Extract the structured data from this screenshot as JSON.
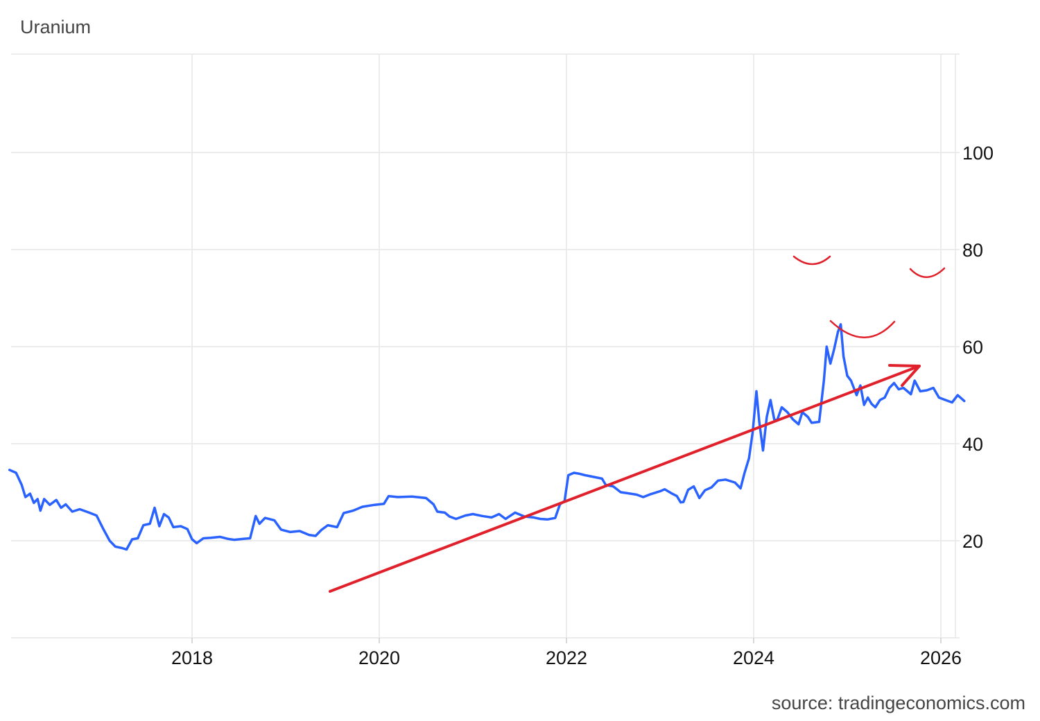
{
  "title": "Uranium",
  "source": "source: tradingeconomics.com",
  "colors": {
    "series": "#2962ff",
    "annotation": "#e0202a",
    "grid": "#e6e6e6"
  },
  "chart_data": {
    "type": "line",
    "title": "Uranium",
    "xlabel": "",
    "ylabel": "",
    "xlim": [
      2016.05,
      2026.45
    ],
    "ylim": [
      0,
      120
    ],
    "x_ticks": [
      "2018",
      "2020",
      "2022",
      "2024",
      "2026"
    ],
    "y_ticks": [
      "20",
      "40",
      "60",
      "80",
      "100"
    ],
    "y_axis_side": "right",
    "grid": true,
    "series": [
      {
        "color": "#2962ff",
        "points": [
          [
            2016.05,
            34.6
          ],
          [
            2016.12,
            34.0
          ],
          [
            2016.18,
            31.5
          ],
          [
            2016.22,
            29.0
          ],
          [
            2016.27,
            29.7
          ],
          [
            2016.31,
            27.8
          ],
          [
            2016.35,
            28.6
          ],
          [
            2016.38,
            26.2
          ],
          [
            2016.42,
            28.6
          ],
          [
            2016.48,
            27.4
          ],
          [
            2016.55,
            28.4
          ],
          [
            2016.6,
            26.8
          ],
          [
            2016.65,
            27.5
          ],
          [
            2016.72,
            26.0
          ],
          [
            2016.8,
            26.5
          ],
          [
            2016.9,
            25.8
          ],
          [
            2016.98,
            25.2
          ],
          [
            2017.05,
            22.5
          ],
          [
            2017.12,
            20.0
          ],
          [
            2017.18,
            18.8
          ],
          [
            2017.25,
            18.5
          ],
          [
            2017.3,
            18.2
          ],
          [
            2017.36,
            20.3
          ],
          [
            2017.42,
            20.5
          ],
          [
            2017.48,
            23.2
          ],
          [
            2017.55,
            23.5
          ],
          [
            2017.6,
            26.8
          ],
          [
            2017.65,
            23.0
          ],
          [
            2017.7,
            25.5
          ],
          [
            2017.75,
            24.8
          ],
          [
            2017.8,
            22.8
          ],
          [
            2017.88,
            23.0
          ],
          [
            2017.95,
            22.4
          ],
          [
            2018.0,
            20.3
          ],
          [
            2018.05,
            19.5
          ],
          [
            2018.12,
            20.5
          ],
          [
            2018.2,
            20.6
          ],
          [
            2018.3,
            20.8
          ],
          [
            2018.38,
            20.4
          ],
          [
            2018.45,
            20.2
          ],
          [
            2018.55,
            20.4
          ],
          [
            2018.62,
            20.5
          ],
          [
            2018.68,
            25.1
          ],
          [
            2018.72,
            23.5
          ],
          [
            2018.78,
            24.7
          ],
          [
            2018.88,
            24.2
          ],
          [
            2018.95,
            22.3
          ],
          [
            2019.05,
            21.8
          ],
          [
            2019.15,
            22.0
          ],
          [
            2019.25,
            21.2
          ],
          [
            2019.32,
            21.0
          ],
          [
            2019.38,
            22.2
          ],
          [
            2019.45,
            23.2
          ],
          [
            2019.55,
            22.8
          ],
          [
            2019.62,
            25.7
          ],
          [
            2019.72,
            26.2
          ],
          [
            2019.82,
            27.0
          ],
          [
            2019.95,
            27.4
          ],
          [
            2020.05,
            27.6
          ],
          [
            2020.1,
            29.2
          ],
          [
            2020.2,
            29.0
          ],
          [
            2020.35,
            29.1
          ],
          [
            2020.5,
            28.8
          ],
          [
            2020.58,
            27.5
          ],
          [
            2020.62,
            26.0
          ],
          [
            2020.7,
            25.8
          ],
          [
            2020.75,
            25.0
          ],
          [
            2020.82,
            24.5
          ],
          [
            2020.92,
            25.2
          ],
          [
            2021.0,
            25.5
          ],
          [
            2021.1,
            25.1
          ],
          [
            2021.2,
            24.8
          ],
          [
            2021.28,
            25.5
          ],
          [
            2021.35,
            24.5
          ],
          [
            2021.45,
            25.8
          ],
          [
            2021.55,
            25.0
          ],
          [
            2021.65,
            24.8
          ],
          [
            2021.72,
            24.5
          ],
          [
            2021.8,
            24.4
          ],
          [
            2021.88,
            24.7
          ],
          [
            2021.93,
            27.5
          ],
          [
            2021.98,
            28.2
          ],
          [
            2022.02,
            33.5
          ],
          [
            2022.08,
            34.0
          ],
          [
            2022.14,
            33.8
          ],
          [
            2022.2,
            33.5
          ],
          [
            2022.28,
            33.2
          ],
          [
            2022.38,
            32.8
          ],
          [
            2022.42,
            31.5
          ],
          [
            2022.5,
            31.2
          ],
          [
            2022.58,
            30.0
          ],
          [
            2022.65,
            29.8
          ],
          [
            2022.75,
            29.5
          ],
          [
            2022.82,
            29.0
          ],
          [
            2022.9,
            29.6
          ],
          [
            2023.0,
            30.2
          ],
          [
            2023.05,
            30.6
          ],
          [
            2023.12,
            29.8
          ],
          [
            2023.18,
            29.2
          ],
          [
            2023.22,
            27.9
          ],
          [
            2023.25,
            28.0
          ],
          [
            2023.3,
            30.5
          ],
          [
            2023.36,
            31.2
          ],
          [
            2023.42,
            28.8
          ],
          [
            2023.48,
            30.4
          ],
          [
            2023.55,
            31.0
          ],
          [
            2023.62,
            32.4
          ],
          [
            2023.7,
            32.6
          ],
          [
            2023.8,
            32.0
          ],
          [
            2023.86,
            30.8
          ],
          [
            2023.9,
            33.8
          ],
          [
            2023.95,
            37.0
          ],
          [
            2023.99,
            42.5
          ],
          [
            2024.03,
            50.8
          ],
          [
            2024.06,
            44.5
          ],
          [
            2024.1,
            38.6
          ],
          [
            2024.14,
            45.5
          ],
          [
            2024.18,
            49.0
          ],
          [
            2024.22,
            45.0
          ],
          [
            2024.25,
            44.8
          ],
          [
            2024.3,
            47.5
          ],
          [
            2024.36,
            46.5
          ],
          [
            2024.42,
            45.0
          ],
          [
            2024.48,
            44.0
          ],
          [
            2024.52,
            46.5
          ],
          [
            2024.58,
            45.5
          ],
          [
            2024.62,
            44.3
          ],
          [
            2024.7,
            44.5
          ],
          [
            2024.75,
            53.0
          ],
          [
            2024.78,
            60.0
          ],
          [
            2024.82,
            56.5
          ],
          [
            2024.86,
            59.5
          ],
          [
            2024.9,
            63.0
          ],
          [
            2024.93,
            64.6
          ],
          [
            2024.96,
            58.0
          ],
          [
            2025.0,
            54.0
          ],
          [
            2025.04,
            53.0
          ],
          [
            2025.1,
            50.0
          ],
          [
            2025.14,
            52.0
          ],
          [
            2025.18,
            48.0
          ],
          [
            2025.22,
            49.5
          ],
          [
            2025.26,
            48.2
          ],
          [
            2025.3,
            47.5
          ],
          [
            2025.35,
            49.0
          ],
          [
            2025.4,
            49.5
          ],
          [
            2025.45,
            51.5
          ],
          [
            2025.5,
            52.5
          ],
          [
            2025.55,
            51.2
          ],
          [
            2025.6,
            51.5
          ],
          [
            2025.68,
            50.2
          ],
          [
            2025.72,
            53.0
          ],
          [
            2025.78,
            50.8
          ],
          [
            2025.85,
            51.0
          ],
          [
            2025.92,
            51.5
          ],
          [
            2025.98,
            49.5
          ],
          [
            2026.05,
            49.0
          ],
          [
            2026.12,
            48.5
          ],
          [
            2026.18,
            50.0
          ],
          [
            2026.25,
            48.8
          ]
        ]
      }
    ]
  }
}
